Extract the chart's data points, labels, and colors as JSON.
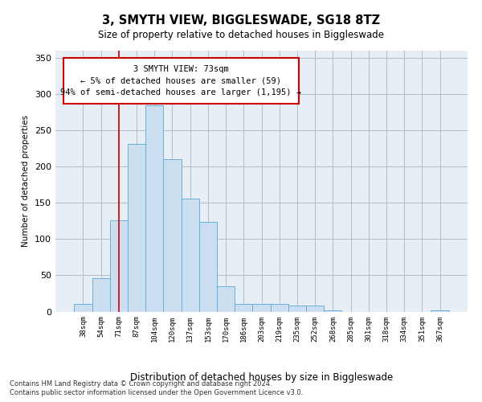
{
  "title": "3, SMYTH VIEW, BIGGLESWADE, SG18 8TZ",
  "subtitle": "Size of property relative to detached houses in Biggleswade",
  "xlabel": "Distribution of detached houses by size in Biggleswade",
  "ylabel": "Number of detached properties",
  "footnote1": "Contains HM Land Registry data © Crown copyright and database right 2024.",
  "footnote2": "Contains public sector information licensed under the Open Government Licence v3.0.",
  "annotation_title": "3 SMYTH VIEW: 73sqm",
  "annotation_line1": "← 5% of detached houses are smaller (59)",
  "annotation_line2": "94% of semi-detached houses are larger (1,195) →",
  "bar_color": "#ccdff0",
  "bar_edge_color": "#6aaed6",
  "grid_color": "#b0bec8",
  "bg_color": "#e8eef5",
  "vline_color": "#cc0000",
  "annotation_box_color": "#cc0000",
  "categories": [
    "38sqm",
    "54sqm",
    "71sqm",
    "87sqm",
    "104sqm",
    "120sqm",
    "137sqm",
    "153sqm",
    "170sqm",
    "186sqm",
    "203sqm",
    "219sqm",
    "235sqm",
    "252sqm",
    "268sqm",
    "285sqm",
    "301sqm",
    "318sqm",
    "334sqm",
    "351sqm",
    "367sqm"
  ],
  "values": [
    10,
    46,
    126,
    231,
    284,
    210,
    156,
    124,
    35,
    10,
    10,
    10,
    8,
    8,
    2,
    0,
    0,
    0,
    0,
    0,
    2
  ],
  "vline_x": 2.0,
  "ylim": [
    0,
    360
  ],
  "yticks": [
    0,
    50,
    100,
    150,
    200,
    250,
    300,
    350
  ]
}
